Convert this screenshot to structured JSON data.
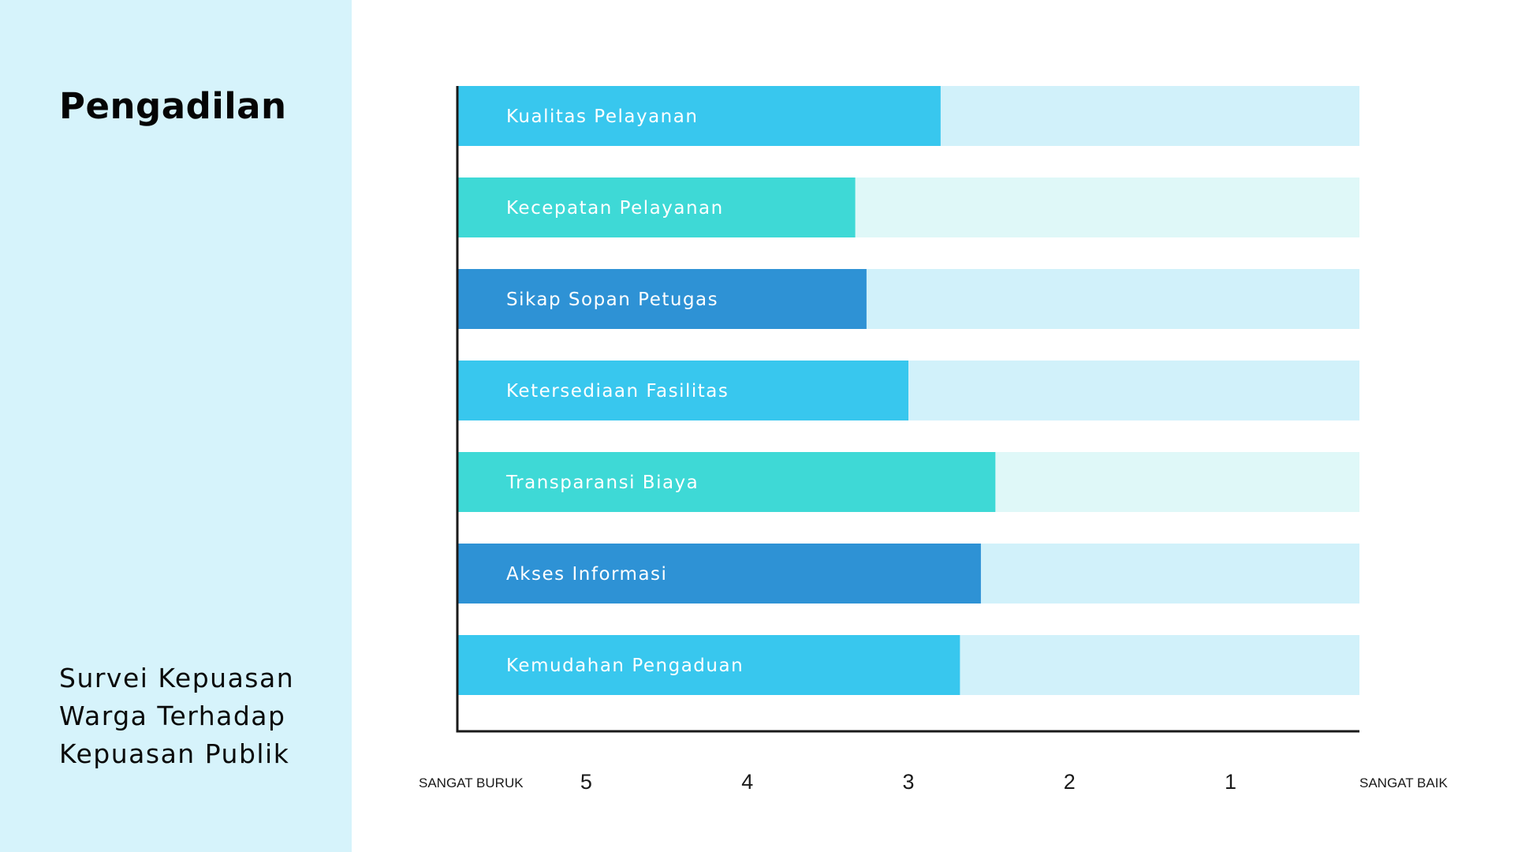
{
  "page": {
    "title": "Pengadilan",
    "subtitle_lines": [
      "Survei Kepuasan",
      "Warga Terhadap",
      "Kepuasan Publik"
    ]
  },
  "colors": {
    "panel_bg": "#d6f3fb",
    "axis": "#1a1a1a",
    "bar_blue_light": "#38c7ee",
    "bar_teal": "#3ed9d6",
    "bar_blue_dark": "#2e92d5",
    "track_blue": "#d1f1fa",
    "track_teal": "#dff8f8"
  },
  "chart_data": {
    "type": "bar",
    "orientation": "horizontal",
    "axis_direction": "reversed",
    "xlim": [
      5.8,
      0.2
    ],
    "ticks": [
      5,
      4,
      3,
      2,
      1
    ],
    "left_end_label": "SANGAT BURUK",
    "right_end_label": "SANGAT BAIK",
    "grid": false,
    "categories": [
      "Kualitas Pelayanan",
      "Kecepatan Pelayanan",
      "Sikap Sopan Petugas",
      "Ketersediaan Fasilitas",
      "Transparansi Biaya",
      "Akses Informasi",
      "Kemudahan Pengaduan"
    ],
    "values": [
      2.8,
      3.33,
      3.26,
      3.0,
      2.46,
      2.55,
      2.68
    ],
    "bar_colors": [
      "#38c7ee",
      "#3ed9d6",
      "#2e92d5",
      "#38c7ee",
      "#3ed9d6",
      "#2e92d5",
      "#38c7ee"
    ],
    "track_colors": [
      "#d1f1fa",
      "#dff8f8",
      "#d1f1fa",
      "#d1f1fa",
      "#dff8f8",
      "#d1f1fa",
      "#d1f1fa"
    ]
  }
}
